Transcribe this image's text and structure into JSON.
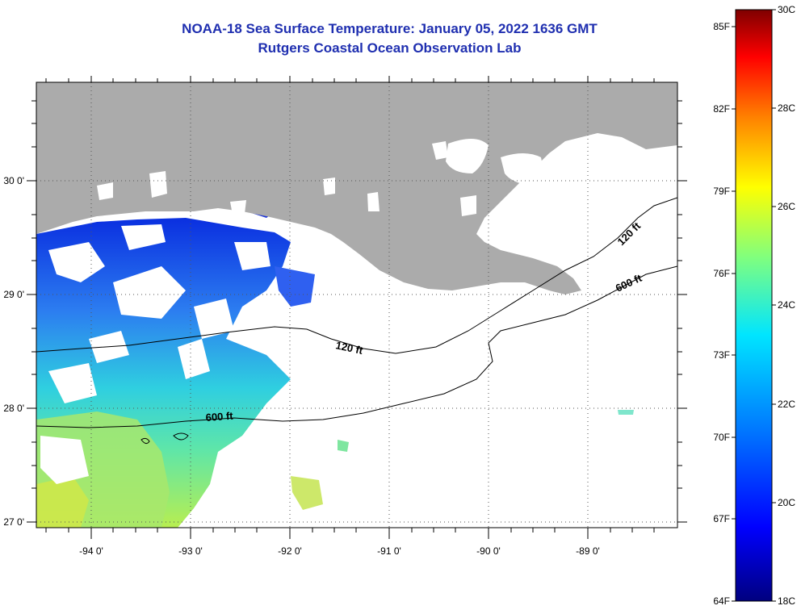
{
  "title": {
    "line1": "NOAA-18 Sea Surface Temperature:  January 05, 2022 1636 GMT",
    "line2": "Rutgers Coastal Ocean Observation Lab"
  },
  "map": {
    "lon_labels": [
      "-94 0'",
      "-93 0'",
      "-92 0'",
      "-91 0'",
      "-90 0'",
      "-89 0'"
    ],
    "lat_labels": [
      "30 0'",
      "29 0'",
      "28 0'",
      "27 0'"
    ],
    "contour_labels": [
      {
        "text": "120 ft"
      },
      {
        "text": "600 ft"
      },
      {
        "text": "120 ft"
      },
      {
        "text": "600 ft"
      }
    ],
    "colors": {
      "land": "#ababab",
      "frame": "#000000",
      "gridline": "#555555"
    }
  },
  "colorbar": {
    "fahrenheit_labels": [
      "85F",
      "82F",
      "79F",
      "76F",
      "73F",
      "70F",
      "67F",
      "64F"
    ],
    "celsius_labels": [
      "30C",
      "28C",
      "26C",
      "24C",
      "22C",
      "20C",
      "18C"
    ],
    "stops": [
      "#00007f",
      "#0000ff",
      "#007fff",
      "#00ffff",
      "#7fff7f",
      "#ffff00",
      "#ff7f00",
      "#ff0000",
      "#7f0000"
    ]
  }
}
